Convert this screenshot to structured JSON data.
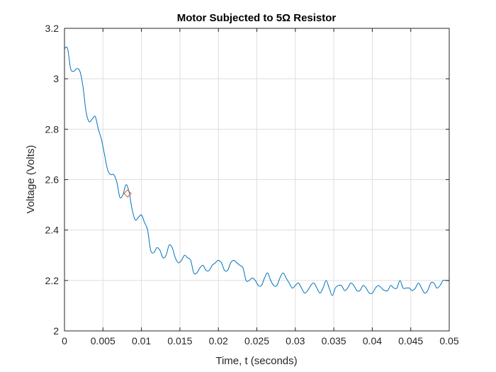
{
  "chart_data": {
    "type": "line",
    "title": "Motor Subjected to 5Ω Resistor",
    "xlabel": "Time, t (seconds)",
    "ylabel": "Voltage (Volts)",
    "xlim": [
      0,
      0.05
    ],
    "ylim": [
      2,
      3.2
    ],
    "xticks": [
      0,
      0.005,
      0.01,
      0.015,
      0.02,
      0.025,
      0.03,
      0.035,
      0.04,
      0.045,
      0.05
    ],
    "xtick_labels": [
      "0",
      "0.005",
      "0.01",
      "0.015",
      "0.02",
      "0.025",
      "0.03",
      "0.035",
      "0.04",
      "0.045",
      "0.05"
    ],
    "yticks": [
      2,
      2.2,
      2.4,
      2.6,
      2.8,
      3,
      3.2
    ],
    "ytick_labels": [
      "2",
      "2.2",
      "2.4",
      "2.6",
      "2.8",
      "3",
      "3.2"
    ],
    "grid": true,
    "series": [
      {
        "color": "#0072bd",
        "x": [
          0,
          0.0004,
          0.0008,
          0.0012,
          0.0016,
          0.002,
          0.0024,
          0.0028,
          0.0032,
          0.0036,
          0.004,
          0.0044,
          0.0048,
          0.0052,
          0.0056,
          0.006,
          0.0064,
          0.0068,
          0.0072,
          0.0076,
          0.008,
          0.0084,
          0.0088,
          0.0092,
          0.0096,
          0.01,
          0.0104,
          0.0108,
          0.0112,
          0.0116,
          0.012,
          0.0124,
          0.0128,
          0.0132,
          0.0136,
          0.014,
          0.0144,
          0.0148,
          0.0152,
          0.0156,
          0.016,
          0.0164,
          0.0168,
          0.0172,
          0.0176,
          0.018,
          0.0184,
          0.0188,
          0.0192,
          0.0196,
          0.02,
          0.0204,
          0.0208,
          0.0212,
          0.0216,
          0.022,
          0.0224,
          0.0228,
          0.0232,
          0.0236,
          0.024,
          0.0244,
          0.0248,
          0.0252,
          0.0256,
          0.026,
          0.0264,
          0.0268,
          0.0272,
          0.0276,
          0.028,
          0.0284,
          0.0288,
          0.0292,
          0.0296,
          0.03,
          0.0304,
          0.0308,
          0.0312,
          0.0316,
          0.032,
          0.0324,
          0.0328,
          0.0332,
          0.0336,
          0.034,
          0.0344,
          0.0348,
          0.0352,
          0.0356,
          0.036,
          0.0364,
          0.0368,
          0.0372,
          0.0376,
          0.038,
          0.0384,
          0.0388,
          0.0392,
          0.0396,
          0.04,
          0.0404,
          0.0408,
          0.0412,
          0.0416,
          0.042,
          0.0424,
          0.0428,
          0.0432,
          0.0436,
          0.044,
          0.0444,
          0.0448,
          0.0452,
          0.0456,
          0.046,
          0.0464,
          0.0468,
          0.0472,
          0.0476,
          0.048,
          0.0484,
          0.0488,
          0.0492,
          0.0496,
          0.05
        ],
        "y": [
          3.12,
          3.12,
          3.04,
          3.03,
          3.04,
          3.03,
          2.97,
          2.87,
          2.83,
          2.84,
          2.85,
          2.8,
          2.76,
          2.7,
          2.64,
          2.62,
          2.62,
          2.59,
          2.53,
          2.54,
          2.58,
          2.55,
          2.48,
          2.44,
          2.45,
          2.46,
          2.43,
          2.4,
          2.32,
          2.31,
          2.33,
          2.32,
          2.29,
          2.3,
          2.34,
          2.33,
          2.29,
          2.27,
          2.28,
          2.3,
          2.29,
          2.28,
          2.23,
          2.23,
          2.25,
          2.26,
          2.24,
          2.24,
          2.26,
          2.27,
          2.28,
          2.27,
          2.24,
          2.24,
          2.27,
          2.28,
          2.27,
          2.26,
          2.25,
          2.2,
          2.2,
          2.21,
          2.2,
          2.18,
          2.18,
          2.21,
          2.23,
          2.2,
          2.18,
          2.18,
          2.21,
          2.23,
          2.21,
          2.19,
          2.17,
          2.18,
          2.19,
          2.17,
          2.15,
          2.16,
          2.18,
          2.19,
          2.17,
          2.15,
          2.17,
          2.2,
          2.17,
          2.14,
          2.17,
          2.18,
          2.18,
          2.16,
          2.17,
          2.19,
          2.18,
          2.16,
          2.16,
          2.18,
          2.17,
          2.15,
          2.15,
          2.17,
          2.18,
          2.17,
          2.16,
          2.16,
          2.18,
          2.17,
          2.17,
          2.2,
          2.17,
          2.17,
          2.17,
          2.16,
          2.17,
          2.19,
          2.17,
          2.15,
          2.16,
          2.19,
          2.19,
          2.17,
          2.18,
          2.2,
          2.2,
          2.2
        ]
      }
    ],
    "marker": {
      "shape": "diamond",
      "color": "#d95319",
      "x": 0.0082,
      "y": 2.545
    }
  }
}
